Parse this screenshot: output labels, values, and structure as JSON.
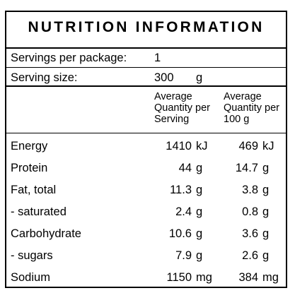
{
  "title": "NUTRITION INFORMATION",
  "servings_per_package": {
    "label": "Servings per package:",
    "value": "1"
  },
  "serving_size": {
    "label": "Serving size:",
    "value": "300",
    "unit": "g"
  },
  "column_headers": {
    "per_serving": [
      "Average",
      "Quantity per",
      "Serving"
    ],
    "per_100g": [
      "Average",
      "Quantity per",
      "100 g"
    ]
  },
  "rows": [
    {
      "name": "Energy",
      "per_serving": "1410",
      "per_serving_unit": "kJ",
      "per_100g": "469",
      "per_100g_unit": "kJ"
    },
    {
      "name": "Protein",
      "per_serving": "44",
      "per_serving_unit": "g",
      "per_100g": "14.7",
      "per_100g_unit": "g"
    },
    {
      "name": "Fat, total",
      "per_serving": "11.3",
      "per_serving_unit": "g",
      "per_100g": "3.8",
      "per_100g_unit": "g"
    },
    {
      "name": "- saturated",
      "per_serving": "2.4",
      "per_serving_unit": "g",
      "per_100g": "0.8",
      "per_100g_unit": "g"
    },
    {
      "name": "Carbohydrate",
      "per_serving": "10.6",
      "per_serving_unit": "g",
      "per_100g": "3.6",
      "per_100g_unit": "g"
    },
    {
      "name": "- sugars",
      "per_serving": "7.9",
      "per_serving_unit": "g",
      "per_100g": "2.6",
      "per_100g_unit": "g"
    },
    {
      "name": "Sodium",
      "per_serving": "1150",
      "per_serving_unit": "mg",
      "per_100g": "384",
      "per_100g_unit": "mg"
    }
  ]
}
